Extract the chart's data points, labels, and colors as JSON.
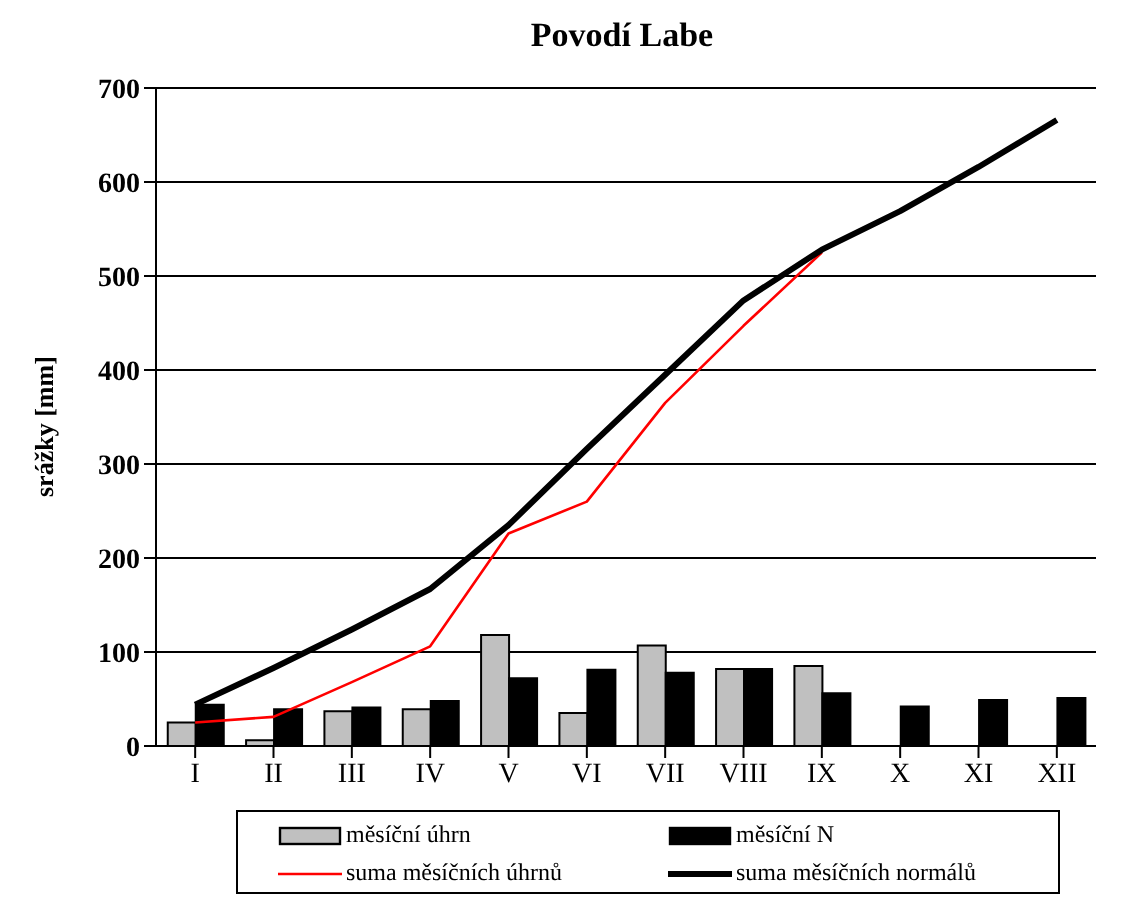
{
  "chart_data": {
    "type": "bar",
    "title": "Povodí Labe",
    "ylabel": "srážky [mm]",
    "categories": [
      "I",
      "II",
      "III",
      "IV",
      "V",
      "VI",
      "VII",
      "VIII",
      "IX",
      "X",
      "XI",
      "XII"
    ],
    "series": [
      {
        "name": "měsíční úhrn",
        "color": "#c0c0c0",
        "values": [
          25,
          6,
          37,
          39,
          118,
          35,
          107,
          82,
          85,
          null,
          null,
          null
        ]
      },
      {
        "name": "měsíční N",
        "color": "#000000",
        "values": [
          44,
          39,
          41,
          48,
          72,
          81,
          78,
          82,
          56,
          42,
          49,
          51
        ]
      },
      {
        "name": "suma měsíčních úhrnů",
        "type": "line",
        "color": "#ff0000",
        "values": [
          25,
          31,
          68,
          106,
          226,
          260,
          365,
          447,
          525,
          null,
          null,
          null
        ]
      },
      {
        "name": "suma měsíčních normálů",
        "type": "line",
        "color": "#000000",
        "values": [
          44,
          83,
          124,
          167,
          235,
          316,
          395,
          474,
          528,
          569,
          616,
          666
        ]
      }
    ],
    "ylim": [
      0,
      700
    ],
    "yticks": [
      0,
      100,
      200,
      300,
      400,
      500,
      600,
      700
    ],
    "grid": "y",
    "legend": "bottom",
    "marker": "none",
    "line_style": "solid"
  }
}
